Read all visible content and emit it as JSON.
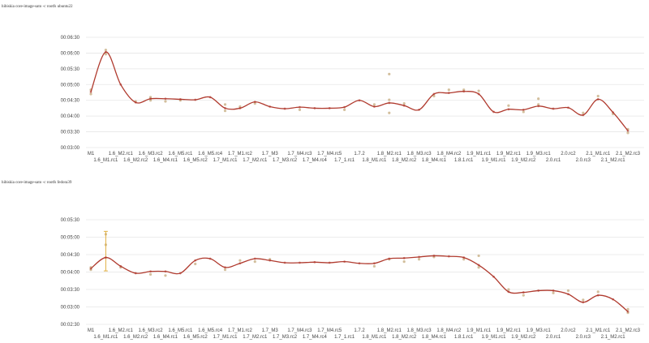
{
  "colors": {
    "line": "#b03a2e",
    "point": "#c4a97c",
    "errorbar": "#e0b040",
    "grid": "#e6e6e6",
    "text": "#444444"
  },
  "chart_data": [
    {
      "type": "line",
      "title": "hibiskia core-image-sato -c rootfs ubuntu22",
      "xlabel": "",
      "ylabel": "",
      "grid": true,
      "ylim": [
        180,
        390
      ],
      "yticks": [
        180,
        210,
        240,
        270,
        300,
        330,
        360,
        390
      ],
      "ytick_labels": [
        "00:03:00",
        "00:03:30",
        "00:04:00",
        "00:04:30",
        "00:05:00",
        "00:05:30",
        "00:06:00",
        "00:06:30"
      ],
      "categories": [
        "M1",
        "1.6_M1.rc1",
        "1.6_M2.rc1",
        "1.6_M2.rc2",
        "1.6_M3.rc2",
        "1.6_M4.rc1",
        "1.6_M5.rc1",
        "1.6_M5.rc2",
        "1.6_M5.rc4",
        "1.7_M1.rc1",
        "1.7_M1.rc2",
        "1.7_M2.rc1",
        "1.7_M3",
        "1.7_M3.rc2",
        "1.7_M4.rc3",
        "1.7_M4.rc4",
        "1.7_M4.rc5",
        "1.7_1.rc1",
        "1.7.2",
        "1.8_M1.rc1",
        "1.8_M2.rc1",
        "1.8_M2.rc2",
        "1.8_M3.rc3",
        "1.8_M4.rc1",
        "1.8_M4.rc2",
        "1.8.1.rc1",
        "1.9_M1.rc1",
        "1.9_M1.rc1",
        "1.9_M2.rc1",
        "1.9_M2.rc2",
        "1.9_M3.rc1",
        "2.0.rc1",
        "2.0.rc2",
        "2.0.rc3",
        "2.1_M1.rc1",
        "2.1_M2.rc1",
        "2.1_M2.rc3"
      ],
      "values": [
        286,
        362,
        300,
        266,
        273,
        273,
        272,
        271,
        276,
        255,
        255,
        267,
        258,
        254,
        257,
        255,
        255,
        257,
        270,
        258,
        265,
        260,
        252,
        282,
        284,
        287,
        282,
        248,
        253,
        252,
        259,
        254,
        256,
        242,
        272,
        247,
        212
      ],
      "scatter": [
        [
          0,
          282
        ],
        [
          0,
          290
        ],
        [
          1,
          358
        ],
        [
          1,
          366
        ],
        [
          3,
          268
        ],
        [
          4,
          270
        ],
        [
          4,
          276
        ],
        [
          5,
          268
        ],
        [
          6,
          270
        ],
        [
          9,
          250
        ],
        [
          9,
          262
        ],
        [
          10,
          258
        ],
        [
          11,
          264
        ],
        [
          14,
          252
        ],
        [
          17,
          252
        ],
        [
          19,
          262
        ],
        [
          20,
          246
        ],
        [
          20,
          271
        ],
        [
          20,
          320
        ],
        [
          21,
          264
        ],
        [
          23,
          278
        ],
        [
          24,
          290
        ],
        [
          25,
          290
        ],
        [
          26,
          288
        ],
        [
          28,
          260
        ],
        [
          29,
          248
        ],
        [
          30,
          262
        ],
        [
          30,
          273
        ],
        [
          33,
          246
        ],
        [
          34,
          278
        ],
        [
          35,
          244
        ],
        [
          36,
          208
        ],
        [
          36,
          215
        ]
      ]
    },
    {
      "type": "line",
      "title": "hibiskia core-image-sato -c rootfs fedora39",
      "xlabel": "",
      "ylabel": "",
      "grid": true,
      "ylim": [
        150,
        330
      ],
      "yticks": [
        150,
        180,
        210,
        240,
        270,
        300,
        330
      ],
      "ytick_labels": [
        "00:02:30",
        "00:03:00",
        "00:03:30",
        "00:04:00",
        "00:04:30",
        "00:05:00",
        "00:05:30"
      ],
      "categories": [
        "M1",
        "1.6_M1.rc1",
        "1.6_M2.rc1",
        "1.6_M2.rc2",
        "1.6_M3.rc2",
        "1.6_M4.rc1",
        "1.6_M5.rc1",
        "1.6_M5.rc2",
        "1.6_M5.rc4",
        "1.7_M1.rc1",
        "1.7_M1.rc2",
        "1.7_M2.rc1",
        "1.7_M3",
        "1.7_M3.rc2",
        "1.7_M4.rc3",
        "1.7_M4.rc4",
        "1.7_M4.rc5",
        "1.7_1.rc1",
        "1.7.2",
        "1.8_M1.rc1",
        "1.8_M2.rc1",
        "1.8_M2.rc2",
        "1.8_M3.rc3",
        "1.8_M4.rc1",
        "1.8_M4.rc2",
        "1.8.1.rc1",
        "1.9_M1.rc1",
        "1.9_M1.rc1",
        "1.9_M2.rc1",
        "1.9_M2.rc2",
        "1.9_M3.rc1",
        "2.0.rc1",
        "2.0.rc2",
        "2.0.rc3",
        "2.1_M1.rc1",
        "2.1_M2.rc1",
        "2.1_M2.rc3"
      ],
      "values": [
        246,
        265,
        250,
        238,
        241,
        241,
        238,
        260,
        263,
        248,
        255,
        263,
        260,
        256,
        256,
        257,
        256,
        258,
        255,
        255,
        263,
        264,
        266,
        268,
        267,
        265,
        252,
        232,
        206,
        205,
        208,
        208,
        202,
        188,
        200,
        193,
        172
      ],
      "scatter": [
        [
          0,
          244
        ],
        [
          0,
          248
        ],
        [
          1,
          305
        ],
        [
          1,
          287
        ],
        [
          2,
          248
        ],
        [
          4,
          236
        ],
        [
          5,
          234
        ],
        [
          7,
          254
        ],
        [
          9,
          244
        ],
        [
          10,
          260
        ],
        [
          11,
          258
        ],
        [
          12,
          262
        ],
        [
          19,
          250
        ],
        [
          20,
          262
        ],
        [
          21,
          258
        ],
        [
          22,
          262
        ],
        [
          23,
          266
        ],
        [
          25,
          262
        ],
        [
          26,
          268
        ],
        [
          26,
          248
        ],
        [
          28,
          210
        ],
        [
          29,
          200
        ],
        [
          31,
          204
        ],
        [
          32,
          208
        ],
        [
          33,
          192
        ],
        [
          34,
          206
        ],
        [
          36,
          170
        ],
        [
          36,
          176
        ]
      ],
      "errorbars": [
        {
          "index": 1,
          "low": 242,
          "high": 310
        }
      ]
    }
  ]
}
